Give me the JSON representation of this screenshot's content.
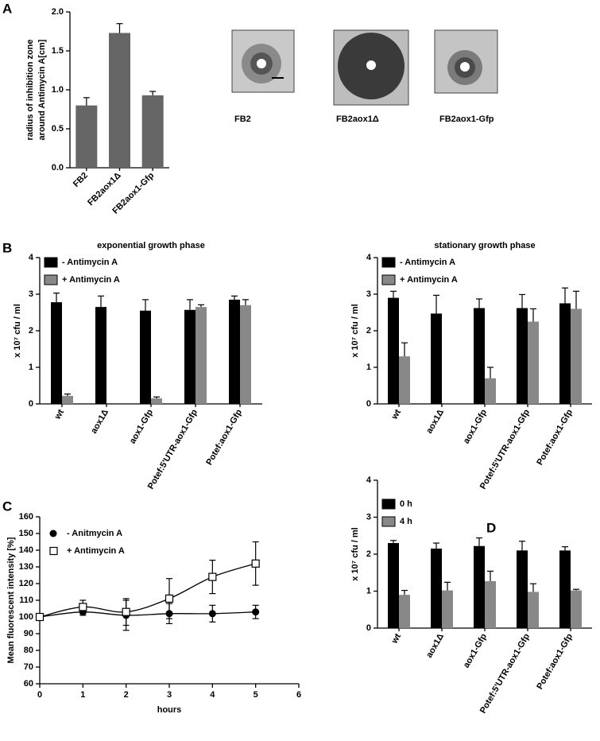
{
  "panel_labels": [
    "A",
    "B",
    "C",
    "D"
  ],
  "images": {
    "labels": [
      "FB2",
      "FB2aox1Δ",
      "FB2aox1-Gfp"
    ]
  },
  "chart_data": [
    {
      "type": "bar",
      "ylabel": [
        "radius of inhibition zone",
        "around Antimycin A[cm]"
      ],
      "categories": [
        "FB2",
        "FB2aox1Δ",
        "FB2aox1-Gfp"
      ],
      "values": [
        0.8,
        1.73,
        0.93
      ],
      "errors": [
        0.1,
        0.12,
        0.05
      ],
      "color": "#666666",
      "ylim": [
        0,
        2
      ],
      "yticks": [
        {
          "value": 0,
          "label": "0.0"
        },
        0.5,
        {
          "value": 1,
          "label": "1.0"
        },
        1.5,
        {
          "value": 2,
          "label": "2.0"
        }
      ]
    },
    {
      "type": "bar",
      "title": "exponential growth phase",
      "ylabel": "x 10⁷ cfu / ml",
      "categories": [
        "wt",
        "aox1Δ",
        "aox1-Gfp",
        "Potef:5'UTR-aox1-Gfp",
        "Potef:aox1-Gfp"
      ],
      "series": [
        {
          "name": "- Antimycin A",
          "color": "#000000",
          "values": [
            2.78,
            2.65,
            2.55,
            2.57,
            2.85
          ],
          "errors": [
            0.25,
            0.3,
            0.3,
            0.28,
            0.1
          ]
        },
        {
          "name": "+ Antimycin A",
          "color": "#888888",
          "values": [
            0.22,
            0,
            0.15,
            2.65,
            2.7
          ],
          "errors": [
            0.05,
            null,
            0.04,
            0.06,
            0.15
          ]
        }
      ],
      "ylim": [
        0,
        4
      ],
      "yticks": [
        0,
        1,
        2,
        3,
        4
      ]
    },
    {
      "type": "bar",
      "title": "stationary growth phase",
      "ylabel": "x 10⁷ cfu / ml",
      "categories": [
        "wt",
        "aox1Δ",
        "aox1-Gfp",
        "Potef:5'UTR-aox1-Gfp",
        "Potef:aox1-Gfp"
      ],
      "series": [
        {
          "name": "- Antimycin A",
          "color": "#000000",
          "values": [
            2.9,
            2.47,
            2.62,
            2.62,
            2.75
          ],
          "errors": [
            0.18,
            0.5,
            0.25,
            0.37,
            0.42
          ]
        },
        {
          "name": "+ Antimycin A",
          "color": "#888888",
          "values": [
            1.3,
            0,
            0.7,
            2.25,
            2.6
          ],
          "errors": [
            0.37,
            null,
            0.3,
            0.35,
            0.48
          ]
        }
      ],
      "ylim": [
        0,
        4
      ],
      "yticks": [
        0,
        1,
        2,
        3,
        4
      ]
    },
    {
      "type": "line",
      "ylabel": "Mean fluorescent intensity [%]",
      "xlabel": "hours",
      "x": [
        0,
        1,
        2,
        3,
        4,
        5
      ],
      "series": [
        {
          "name": "- Anitmycin A",
          "color": "#000000",
          "marker": "circle",
          "values": [
            100,
            103,
            101,
            102,
            102,
            103
          ],
          "errors": [
            null,
            2,
            9,
            6,
            5,
            4
          ]
        },
        {
          "name": "+ Antimycin A",
          "color": "#000000",
          "marker": "open-square",
          "values": [
            100,
            106,
            103,
            111,
            124,
            132
          ],
          "errors": [
            null,
            4,
            8,
            12,
            10,
            13
          ]
        }
      ],
      "xlim": [
        0,
        6
      ],
      "xticks": [
        0,
        1,
        2,
        3,
        4,
        5,
        6
      ],
      "ylim": [
        60,
        160
      ],
      "yticks": [
        60,
        70,
        80,
        90,
        100,
        110,
        120,
        130,
        140,
        150,
        160
      ]
    },
    {
      "type": "bar",
      "ylabel": "x 10⁷ cfu / ml",
      "categories": [
        "wt",
        "aox1Δ",
        "aox1-Gfp",
        "Potef:5'UTR-aox1-Gfp",
        "Potef:aox1-Gfp"
      ],
      "series": [
        {
          "name": "0 h",
          "color": "#000000",
          "values": [
            2.3,
            2.15,
            2.22,
            2.1,
            2.1
          ],
          "errors": [
            0.07,
            0.15,
            0.22,
            0.25,
            0.1
          ]
        },
        {
          "name": "4 h",
          "color": "#888888",
          "values": [
            0.9,
            1.02,
            1.27,
            0.98,
            1.02
          ],
          "errors": [
            0.12,
            0.22,
            0.27,
            0.22,
            0.03
          ]
        }
      ],
      "ylim": [
        0,
        4
      ],
      "yticks": [
        0,
        1,
        2,
        3,
        4
      ]
    }
  ]
}
